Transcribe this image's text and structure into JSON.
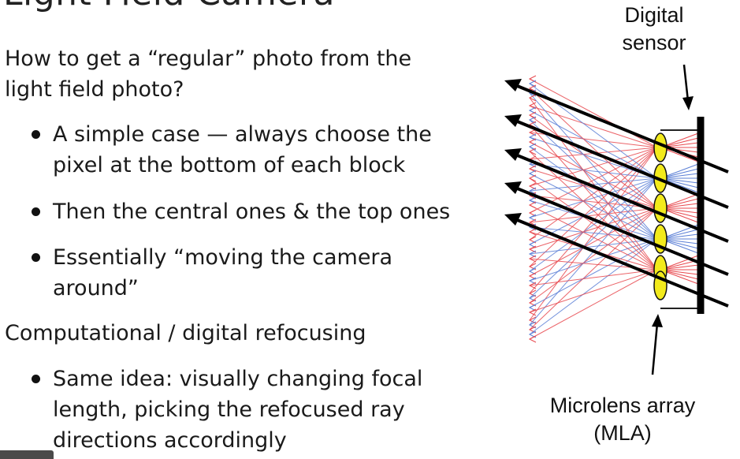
{
  "slide": {
    "title": "Light Field Camera",
    "question": "How to get a “regular” photo from the light field photo?",
    "bullets_1": [
      "A simple case — always choose the pixel at the bottom of each block",
      "Then the central ones & the top ones",
      "Essentially “moving the camera around”"
    ],
    "section_2": "Computational / digital refocusing",
    "bullets_2": [
      "Same idea: visually changing focal length, picking the refocused ray directions accordingly"
    ]
  },
  "diagram": {
    "sensor_label": "Digital sensor",
    "mla_label": "Microlens array (MLA)",
    "colors": {
      "red_rays": "#e8494f",
      "blue_rays": "#5b7fd6",
      "lens_fill": "#f2ea1c",
      "lens_stroke": "#111111",
      "chief_rays": "#000000"
    }
  }
}
